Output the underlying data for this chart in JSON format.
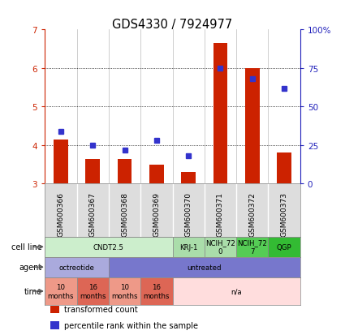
{
  "title": "GDS4330 / 7924977",
  "samples": [
    "GSM600366",
    "GSM600367",
    "GSM600368",
    "GSM600369",
    "GSM600370",
    "GSM600371",
    "GSM600372",
    "GSM600373"
  ],
  "bar_values": [
    4.15,
    3.65,
    3.65,
    3.5,
    3.3,
    6.65,
    6.0,
    3.8
  ],
  "percentile_values": [
    34,
    25,
    22,
    28,
    18,
    75,
    68,
    62
  ],
  "ylim": [
    3.0,
    7.0
  ],
  "y_left_ticks": [
    3,
    4,
    5,
    6,
    7
  ],
  "y_right_ticks": [
    0,
    25,
    50,
    75,
    100
  ],
  "bar_color": "#cc2200",
  "dot_color": "#3333cc",
  "bar_width": 0.45,
  "sample_bg_color": "#dddddd",
  "cell_line_groups": [
    {
      "label": "CNDT2.5",
      "start": 0,
      "end": 4,
      "color": "#cceecc"
    },
    {
      "label": "KRJ-1",
      "start": 4,
      "end": 5,
      "color": "#aaddaa"
    },
    {
      "label": "NCIH_72\n0",
      "start": 5,
      "end": 6,
      "color": "#aaddaa"
    },
    {
      "label": "NCIH_72\n7",
      "start": 6,
      "end": 7,
      "color": "#55cc55"
    },
    {
      "label": "QGP",
      "start": 7,
      "end": 8,
      "color": "#33bb33"
    }
  ],
  "agent_groups": [
    {
      "label": "octreotide",
      "start": 0,
      "end": 2,
      "color": "#aaaadd"
    },
    {
      "label": "untreated",
      "start": 2,
      "end": 8,
      "color": "#7777cc"
    }
  ],
  "time_groups": [
    {
      "label": "10\nmonths",
      "start": 0,
      "end": 1,
      "color": "#ee9988"
    },
    {
      "label": "16\nmonths",
      "start": 1,
      "end": 2,
      "color": "#dd6655"
    },
    {
      "label": "10\nmonths",
      "start": 2,
      "end": 3,
      "color": "#ee9988"
    },
    {
      "label": "16\nmonths",
      "start": 3,
      "end": 4,
      "color": "#dd6655"
    },
    {
      "label": "n/a",
      "start": 4,
      "end": 8,
      "color": "#ffdddd"
    }
  ],
  "row_labels": [
    "cell line",
    "agent",
    "time"
  ],
  "legend_items": [
    {
      "label": "transformed count",
      "color": "#cc2200",
      "marker": "s"
    },
    {
      "label": "percentile rank within the sample",
      "color": "#3333cc",
      "marker": "s"
    }
  ]
}
